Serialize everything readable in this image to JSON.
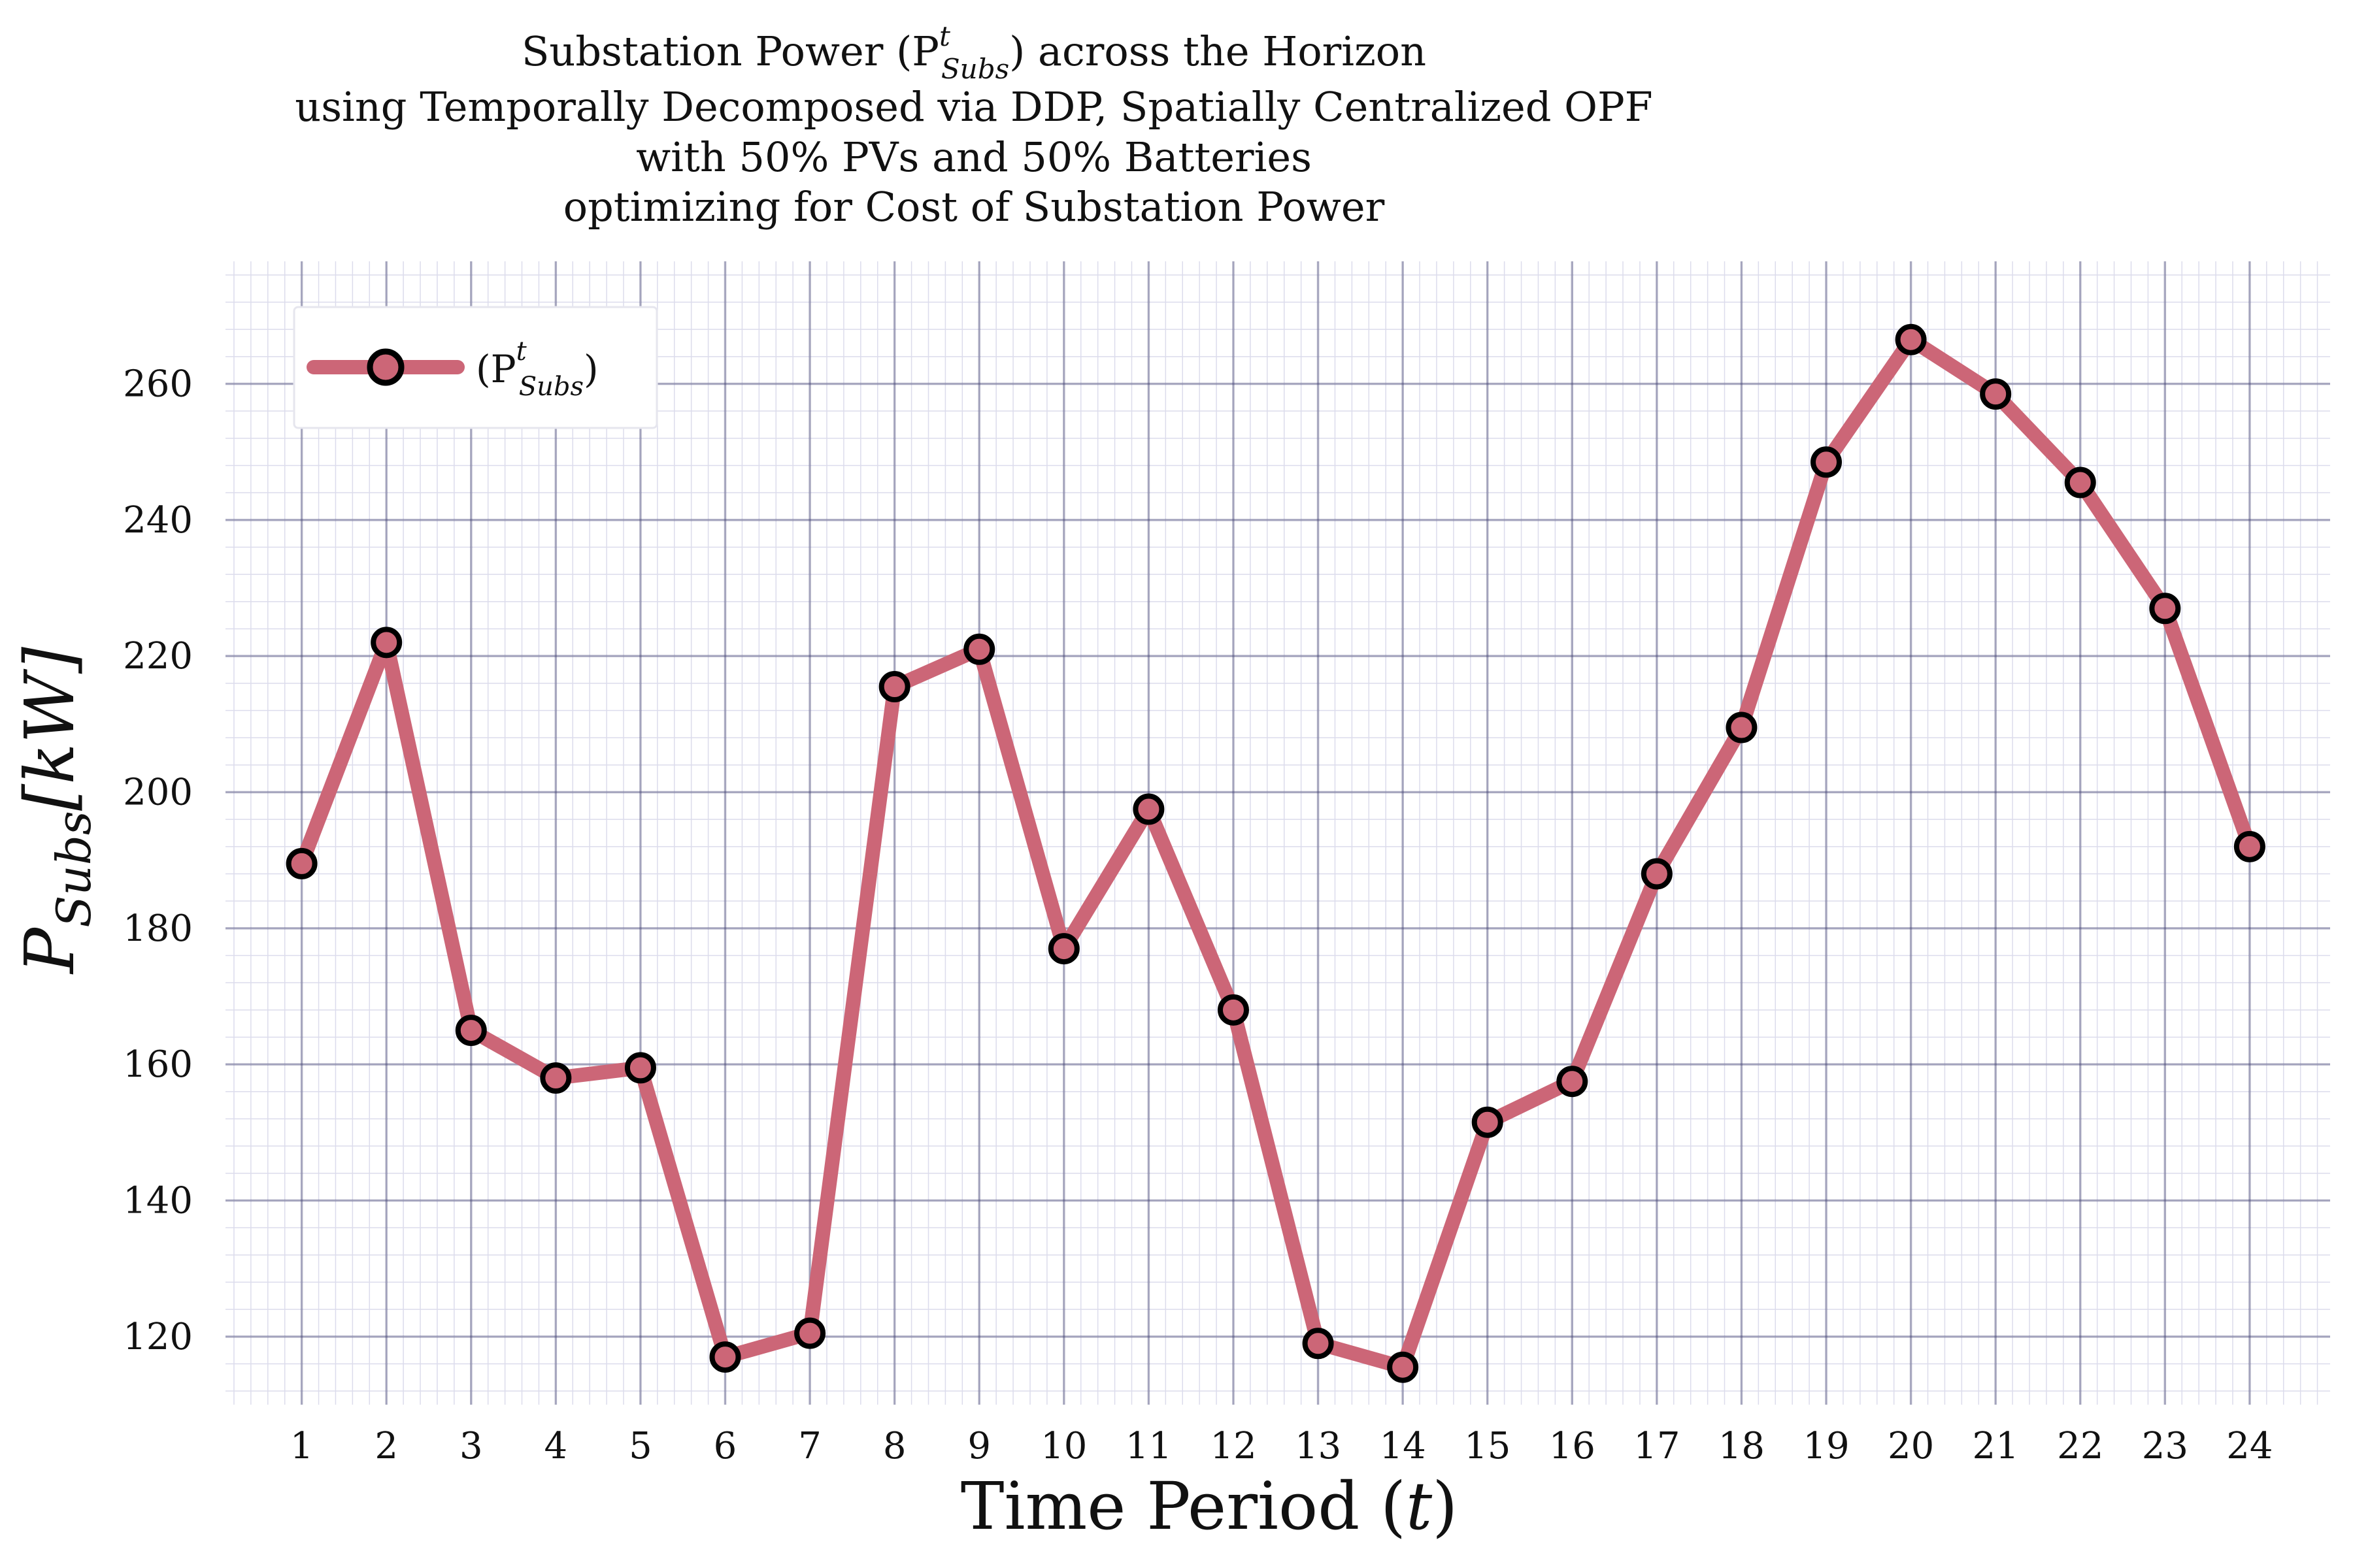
{
  "chart_data": {
    "type": "line",
    "title_lines": [
      "Substation Power (P",
      "using Temporally Decomposed via DDP, Spatially Centralized OPF",
      "with 50% PVs and 50% Batteries",
      "optimizing for Cost of Substation Power"
    ],
    "title_line1": {
      "pre": "Substation Power (P",
      "sup": "t",
      "sub": "Subs",
      "post": ") across the Horizon"
    },
    "xlabel": {
      "pre": "Time Period (",
      "var": "t",
      "post": ")"
    },
    "ylabel": {
      "main": "P",
      "sub": "Subs",
      "unit": "[kW]"
    },
    "legend": {
      "pre": "(P",
      "sup": "t",
      "sub": "Subs",
      "post": ")",
      "placement": "top-left"
    },
    "x": [
      1,
      2,
      3,
      4,
      5,
      6,
      7,
      8,
      9,
      10,
      11,
      12,
      13,
      14,
      15,
      16,
      17,
      18,
      19,
      20,
      21,
      22,
      23,
      24
    ],
    "series": [
      {
        "name": "(P^t_Subs)",
        "values": [
          189.5,
          222,
          165,
          158,
          159.5,
          117,
          120.5,
          215.5,
          221,
          177,
          197.5,
          168,
          119,
          115.5,
          151.5,
          157.5,
          188,
          209.5,
          248.5,
          266.5,
          258.5,
          245.5,
          227,
          192
        ]
      }
    ],
    "xticks": [
      "1",
      "2",
      "3",
      "4",
      "5",
      "6",
      "7",
      "8",
      "9",
      "10",
      "11",
      "12",
      "13",
      "14",
      "15",
      "16",
      "17",
      "18",
      "19",
      "20",
      "21",
      "22",
      "23",
      "24"
    ],
    "yticks": [
      "120",
      "140",
      "160",
      "180",
      "200",
      "220",
      "240",
      "260"
    ],
    "xlim": [
      0.1,
      24.95
    ],
    "ylim": [
      110,
      278
    ],
    "grid": true,
    "colors": {
      "line": "#cc6677",
      "marker_edge": "#000000",
      "grid_major": "#2b2b5e",
      "grid_minor": "#dcdcec"
    }
  }
}
